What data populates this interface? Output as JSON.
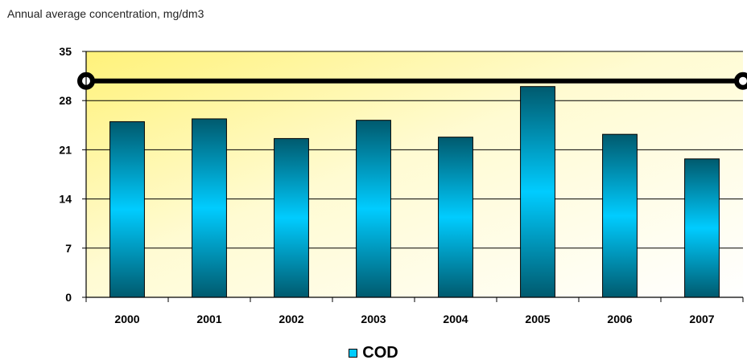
{
  "chart_data": {
    "type": "bar",
    "title": "Annual average concentration, mg/dm3",
    "categories": [
      "2000",
      "2001",
      "2002",
      "2003",
      "2004",
      "2005",
      "2006",
      "2007"
    ],
    "series": [
      {
        "name": "COD",
        "values": [
          25.0,
          25.4,
          22.6,
          25.2,
          22.8,
          30.0,
          23.2,
          19.7
        ]
      }
    ],
    "reference_line": {
      "value": 30.8
    },
    "ylim": [
      0,
      35
    ],
    "yticks": [
      0,
      7,
      14,
      21,
      28,
      35
    ],
    "grid": true,
    "legend_position": "bottom-center",
    "colors": {
      "bar_center": "#00ccff",
      "bar_edge": "#005a6e",
      "plot_bg_warm": "#fff27a",
      "plot_bg_light": "#fffde6",
      "reference_line": "#000000"
    }
  }
}
